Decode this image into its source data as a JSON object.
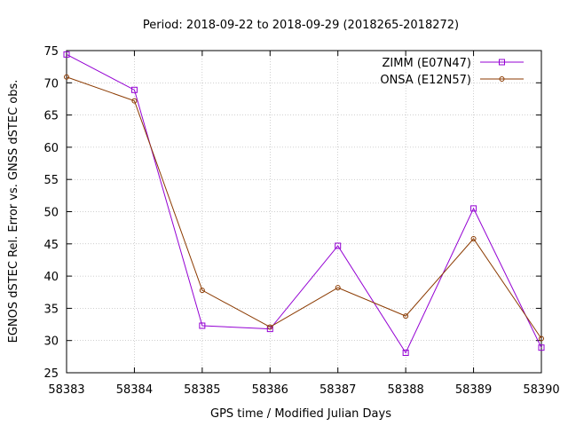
{
  "chart_data": {
    "type": "line",
    "title": "Period: 2018-09-22 to 2018-09-29 (2018265-2018272)",
    "xlabel": "GPS time / Modified Julian Days",
    "ylabel": "EGNOS dSTEC Rel. Error vs. GNSS dSTEC obs.",
    "xlim": [
      58383,
      58390
    ],
    "ylim": [
      25,
      75
    ],
    "xticks": [
      "58383",
      "58384",
      "58385",
      "58386",
      "58387",
      "58388",
      "58389",
      "58390"
    ],
    "yticks": [
      "25",
      "30",
      "35",
      "40",
      "45",
      "50",
      "55",
      "60",
      "65",
      "70",
      "75"
    ],
    "grid": true,
    "legend_position": "top-right",
    "x": [
      58383,
      58384,
      58385,
      58386,
      58387,
      58388,
      58389,
      58390
    ],
    "series": [
      {
        "name": "ZIMM (E07N47)",
        "color": "#9400d3",
        "marker": "square",
        "values": [
          74.4,
          68.9,
          32.3,
          31.8,
          44.7,
          28.1,
          50.5,
          28.9
        ]
      },
      {
        "name": "ONSA (E12N57)",
        "color": "#8b3a00",
        "marker": "circle",
        "values": [
          70.9,
          67.2,
          37.8,
          32.1,
          38.2,
          33.8,
          45.8,
          30.3
        ]
      }
    ]
  }
}
